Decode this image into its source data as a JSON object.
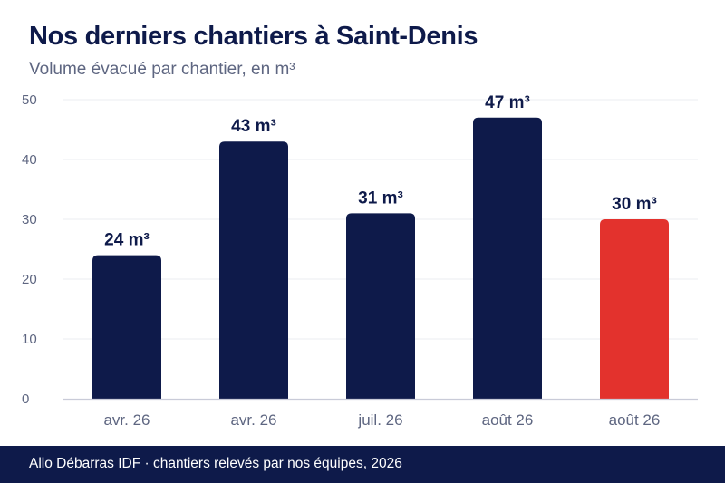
{
  "title": "Nos derniers chantiers à Saint-Denis",
  "subtitle": "Volume évacué par chantier, en m³",
  "footer": "Allo Débarras IDF · chantiers relevés par nos équipes, 2026",
  "colors": {
    "primary": "#0e1a4a",
    "highlight": "#e3322d",
    "grid": "#ebecf1",
    "axis": "#c9cbd8",
    "tick": "#5e6681"
  },
  "chart_data": {
    "type": "bar",
    "categories": [
      "avr. 26",
      "avr. 26",
      "juil. 26",
      "août 26",
      "août 26"
    ],
    "values": [
      24,
      43,
      31,
      47,
      30
    ],
    "data_labels": [
      "24 m³",
      "43 m³",
      "31 m³",
      "47 m³",
      "30 m³"
    ],
    "highlight_index": 4,
    "title": "Nos derniers chantiers à Saint-Denis",
    "subtitle": "Volume évacué par chantier, en m³",
    "ylim": [
      0,
      50
    ],
    "yticks": [
      0,
      10,
      20,
      30,
      40,
      50
    ],
    "grid": true,
    "legend": "none"
  }
}
